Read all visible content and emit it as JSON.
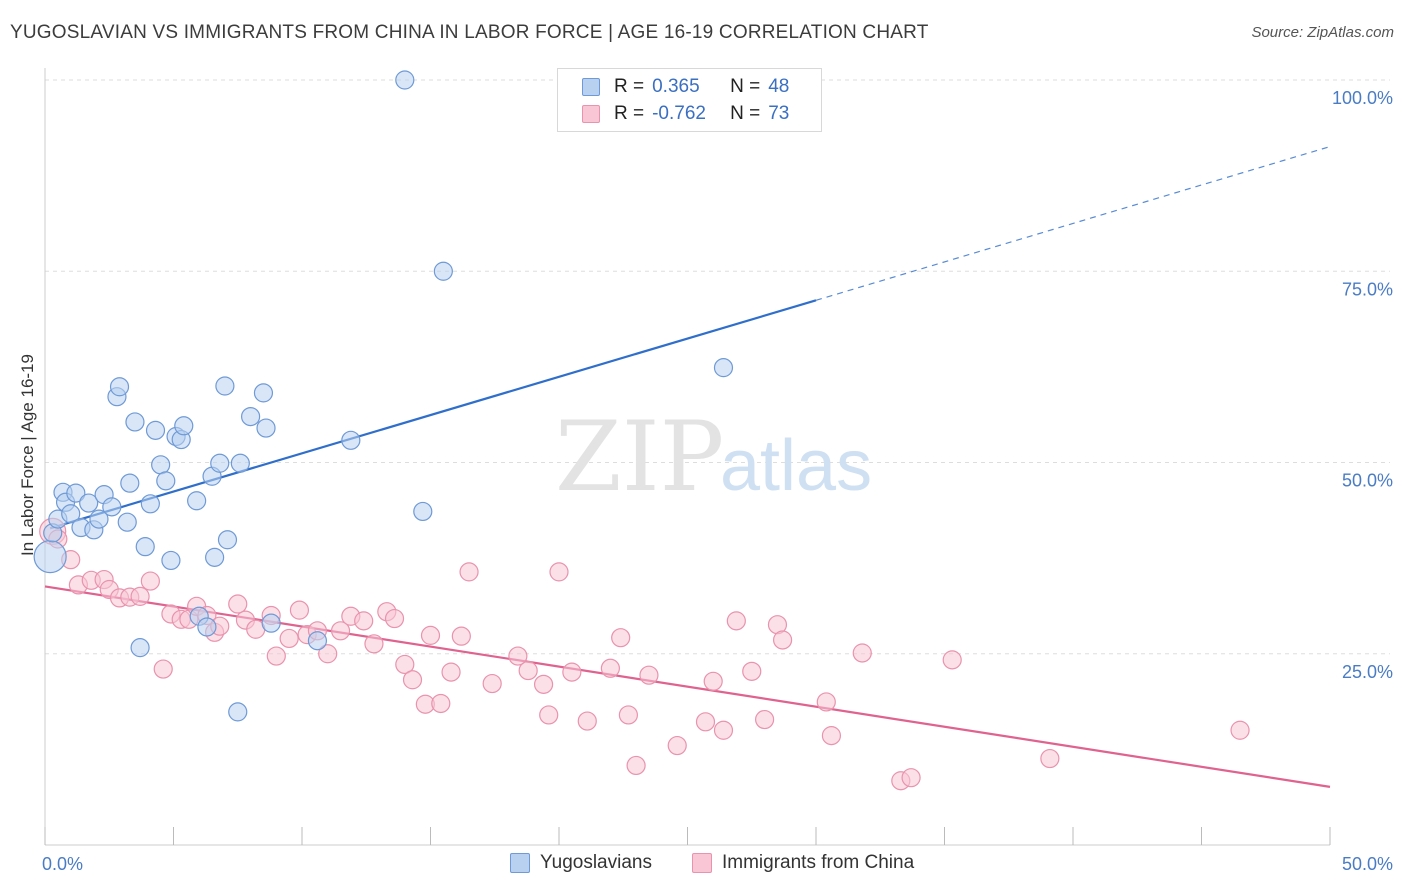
{
  "header": {
    "title": "YUGOSLAVIAN VS IMMIGRANTS FROM CHINA IN LABOR FORCE | AGE 16-19 CORRELATION CHART",
    "source": "Source: ZipAtlas.com"
  },
  "watermark": {
    "zip": "ZIP",
    "atlas": "atlas"
  },
  "legend": {
    "rows": [
      {
        "r_label": "R =",
        "r_value": "0.365",
        "n_label": "N =",
        "n_value": "48",
        "color": "#a9c8ee"
      },
      {
        "r_label": "R =",
        "r_value": "-0.762",
        "n_label": "N =",
        "n_value": "73",
        "color": "#f6b9cc"
      }
    ]
  },
  "colors": {
    "blue_fill": "#b8d1f1",
    "blue_stroke": "#6f9ad6",
    "blue_line": "#2f6fcb",
    "pink_fill": "#f8c6d5",
    "pink_stroke": "#e993ae",
    "pink_line": "#e0628e",
    "grid": "#dddddd"
  },
  "chart_data": {
    "type": "scatter",
    "title": "YUGOSLAVIAN VS IMMIGRANTS FROM CHINA IN LABOR FORCE | AGE 16-19 CORRELATION CHART",
    "xlabel": "",
    "ylabel": "In Labor Force | Age 16-19",
    "xlim": [
      0,
      50
    ],
    "ylim": [
      0,
      100
    ],
    "x_tick_labels": [
      "0.0%",
      "50.0%"
    ],
    "y_ticks": [
      25,
      50,
      75,
      100
    ],
    "y_tick_labels": [
      "25.0%",
      "50.0%",
      "75.0%",
      "100.0%"
    ],
    "grid": true,
    "legend_position": "bottom",
    "series": [
      {
        "name": "Yugoslavians",
        "r": 0.365,
        "n": 48,
        "trend": {
          "x": [
            0.2,
            30
          ],
          "y": [
            41.4,
            71.2
          ],
          "dashed_to": [
            50,
            91.3
          ]
        },
        "points": [
          [
            0.2,
            37.7
          ],
          [
            0.3,
            40.8
          ],
          [
            0.5,
            42.6
          ],
          [
            0.7,
            46.1
          ],
          [
            0.8,
            44.8
          ],
          [
            1.0,
            43.3
          ],
          [
            1.2,
            46.0
          ],
          [
            1.4,
            41.5
          ],
          [
            1.7,
            44.7
          ],
          [
            1.9,
            41.2
          ],
          [
            2.1,
            42.6
          ],
          [
            2.3,
            45.8
          ],
          [
            2.6,
            44.2
          ],
          [
            2.8,
            58.6
          ],
          [
            2.9,
            59.9
          ],
          [
            3.2,
            42.2
          ],
          [
            3.3,
            47.3
          ],
          [
            3.5,
            55.3
          ],
          [
            3.7,
            25.8
          ],
          [
            3.9,
            39.0
          ],
          [
            4.1,
            44.6
          ],
          [
            4.3,
            54.2
          ],
          [
            4.5,
            49.7
          ],
          [
            4.7,
            47.6
          ],
          [
            4.9,
            37.2
          ],
          [
            5.1,
            53.4
          ],
          [
            5.3,
            53.0
          ],
          [
            5.4,
            54.8
          ],
          [
            5.9,
            45.0
          ],
          [
            6.0,
            29.9
          ],
          [
            6.3,
            28.5
          ],
          [
            6.5,
            48.2
          ],
          [
            6.6,
            37.6
          ],
          [
            6.8,
            49.9
          ],
          [
            7.0,
            60.0
          ],
          [
            7.1,
            39.9
          ],
          [
            7.5,
            17.4
          ],
          [
            7.6,
            49.9
          ],
          [
            8.0,
            56.0
          ],
          [
            8.5,
            59.1
          ],
          [
            8.6,
            54.5
          ],
          [
            8.8,
            29.0
          ],
          [
            10.6,
            26.7
          ],
          [
            11.9,
            52.9
          ],
          [
            14.0,
            100.0
          ],
          [
            14.7,
            43.6
          ],
          [
            15.5,
            75.0
          ],
          [
            26.4,
            62.4
          ]
        ]
      },
      {
        "name": "Immigrants from China",
        "r": -0.762,
        "n": 73,
        "trend": {
          "x": [
            0,
            50
          ],
          "y": [
            33.8,
            7.6
          ]
        },
        "points": [
          [
            0.3,
            41.0
          ],
          [
            0.5,
            40.0
          ],
          [
            1.0,
            37.3
          ],
          [
            1.3,
            34.0
          ],
          [
            1.8,
            34.6
          ],
          [
            2.3,
            34.7
          ],
          [
            2.5,
            33.4
          ],
          [
            2.9,
            32.3
          ],
          [
            3.3,
            32.4
          ],
          [
            3.7,
            32.5
          ],
          [
            4.1,
            34.5
          ],
          [
            4.6,
            23.0
          ],
          [
            4.9,
            30.2
          ],
          [
            5.3,
            29.5
          ],
          [
            5.6,
            29.5
          ],
          [
            5.9,
            31.2
          ],
          [
            6.3,
            30.0
          ],
          [
            6.6,
            27.8
          ],
          [
            6.8,
            28.6
          ],
          [
            7.5,
            31.5
          ],
          [
            7.8,
            29.4
          ],
          [
            8.2,
            28.2
          ],
          [
            8.8,
            30.0
          ],
          [
            9.0,
            24.7
          ],
          [
            9.5,
            27.0
          ],
          [
            9.9,
            30.7
          ],
          [
            10.2,
            27.5
          ],
          [
            10.6,
            28.0
          ],
          [
            11.0,
            25.0
          ],
          [
            11.5,
            28.0
          ],
          [
            11.9,
            29.9
          ],
          [
            12.4,
            29.3
          ],
          [
            12.8,
            26.3
          ],
          [
            13.3,
            30.5
          ],
          [
            13.6,
            29.6
          ],
          [
            14.0,
            23.6
          ],
          [
            14.3,
            21.6
          ],
          [
            14.8,
            18.4
          ],
          [
            15.0,
            27.4
          ],
          [
            15.4,
            18.5
          ],
          [
            15.8,
            22.6
          ],
          [
            16.2,
            27.3
          ],
          [
            16.5,
            35.7
          ],
          [
            17.4,
            21.1
          ],
          [
            18.4,
            24.7
          ],
          [
            18.8,
            22.8
          ],
          [
            19.4,
            21.0
          ],
          [
            19.6,
            17.0
          ],
          [
            20.0,
            35.7
          ],
          [
            20.5,
            22.6
          ],
          [
            21.1,
            16.2
          ],
          [
            22.0,
            23.1
          ],
          [
            22.4,
            27.1
          ],
          [
            22.7,
            17.0
          ],
          [
            23.0,
            10.4
          ],
          [
            23.5,
            22.2
          ],
          [
            24.6,
            13.0
          ],
          [
            25.7,
            16.1
          ],
          [
            26.0,
            21.4
          ],
          [
            26.4,
            15.0
          ],
          [
            26.9,
            29.3
          ],
          [
            27.5,
            22.7
          ],
          [
            28.0,
            16.4
          ],
          [
            28.5,
            28.8
          ],
          [
            28.7,
            26.8
          ],
          [
            30.4,
            18.7
          ],
          [
            30.6,
            14.3
          ],
          [
            31.8,
            25.1
          ],
          [
            33.3,
            8.4
          ],
          [
            33.7,
            8.8
          ],
          [
            35.3,
            24.2
          ],
          [
            39.1,
            11.3
          ],
          [
            46.5,
            15.0
          ]
        ]
      }
    ]
  }
}
